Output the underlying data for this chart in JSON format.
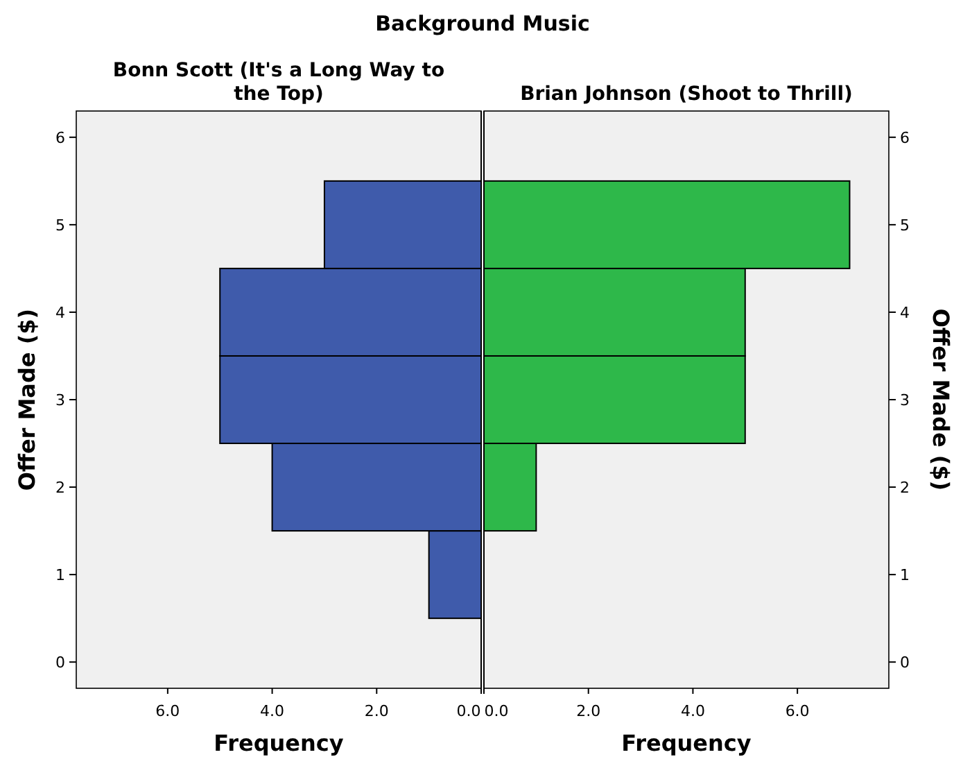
{
  "chart_data": [
    {
      "type": "histogram",
      "title": "Background Music",
      "subtitle": "Bonn Scott (It's a Long Way to the Top)",
      "xlabel": "Frequency",
      "ylabel": "Offer Made ($)",
      "orientation": "horizontal",
      "bins": [
        0.5,
        1.5,
        2.5,
        3.5,
        4.5,
        5.5
      ],
      "values": [
        1,
        4,
        5,
        5,
        3
      ],
      "color": "#3f5bab",
      "xlim": [
        7.75,
        0
      ],
      "xticks": [
        {
          "value": 6,
          "label": "6.0"
        },
        {
          "value": 4,
          "label": "4.0"
        },
        {
          "value": 2,
          "label": "2.0"
        },
        {
          "value": 0,
          "label": "0.0"
        }
      ],
      "ylim": [
        -0.3,
        6.3
      ],
      "yticks": [
        0,
        1,
        2,
        3,
        4,
        5,
        6
      ],
      "grid": false
    },
    {
      "type": "histogram",
      "subtitle": "Brian Johnson (Shoot to Thrill)",
      "xlabel": "Frequency",
      "ylabel": "Offer Made ($)",
      "orientation": "horizontal",
      "bins": [
        0.5,
        1.5,
        2.5,
        3.5,
        4.5,
        5.5
      ],
      "values": [
        0,
        1,
        5,
        5,
        7
      ],
      "color": "#2eb84a",
      "xlim": [
        0,
        7.75
      ],
      "xticks": [
        {
          "value": 0,
          "label": "0.0"
        },
        {
          "value": 2,
          "label": "2.0"
        },
        {
          "value": 4,
          "label": "4.0"
        },
        {
          "value": 6,
          "label": "6.0"
        }
      ],
      "ylim": [
        -0.3,
        6.3
      ],
      "yticks": [
        0,
        1,
        2,
        3,
        4,
        5,
        6
      ],
      "grid": false
    }
  ]
}
